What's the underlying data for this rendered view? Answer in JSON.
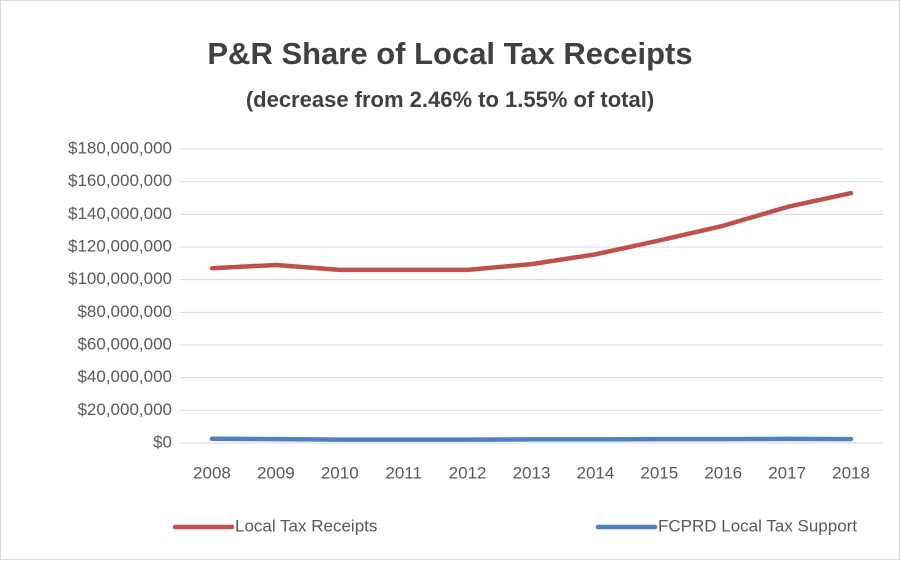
{
  "chart_data": {
    "type": "line",
    "title": "P&R Share of Local Tax Receipts",
    "subtitle": "(decrease from 2.46% to 1.55% of total)",
    "categories": [
      "2008",
      "2009",
      "2010",
      "2011",
      "2012",
      "2013",
      "2014",
      "2015",
      "2016",
      "2017",
      "2018"
    ],
    "series": [
      {
        "name": "Local Tax Receipts",
        "color": "#c0504d",
        "values": [
          107000000,
          109000000,
          106000000,
          106000000,
          106000000,
          109500000,
          115500000,
          124000000,
          133000000,
          144500000,
          153000000
        ]
      },
      {
        "name": "FCPRD Local Tax Support",
        "color": "#4f81bd",
        "values": [
          2600000,
          2400000,
          2100000,
          2100000,
          2100000,
          2200000,
          2200000,
          2400000,
          2400000,
          2500000,
          2400000
        ]
      }
    ],
    "ylim": [
      0,
      180000000
    ],
    "yticks": [
      {
        "value": 0,
        "label": "$0"
      },
      {
        "value": 20000000,
        "label": "$20,000,000"
      },
      {
        "value": 40000000,
        "label": "$40,000,000"
      },
      {
        "value": 60000000,
        "label": "$60,000,000"
      },
      {
        "value": 80000000,
        "label": "$80,000,000"
      },
      {
        "value": 100000000,
        "label": "$100,000,000"
      },
      {
        "value": 120000000,
        "label": "$120,000,000"
      },
      {
        "value": 140000000,
        "label": "$140,000,000"
      },
      {
        "value": 160000000,
        "label": "$160,000,000"
      },
      {
        "value": 180000000,
        "label": "$180,000,000"
      }
    ],
    "grid": true,
    "legend": "bottom"
  }
}
